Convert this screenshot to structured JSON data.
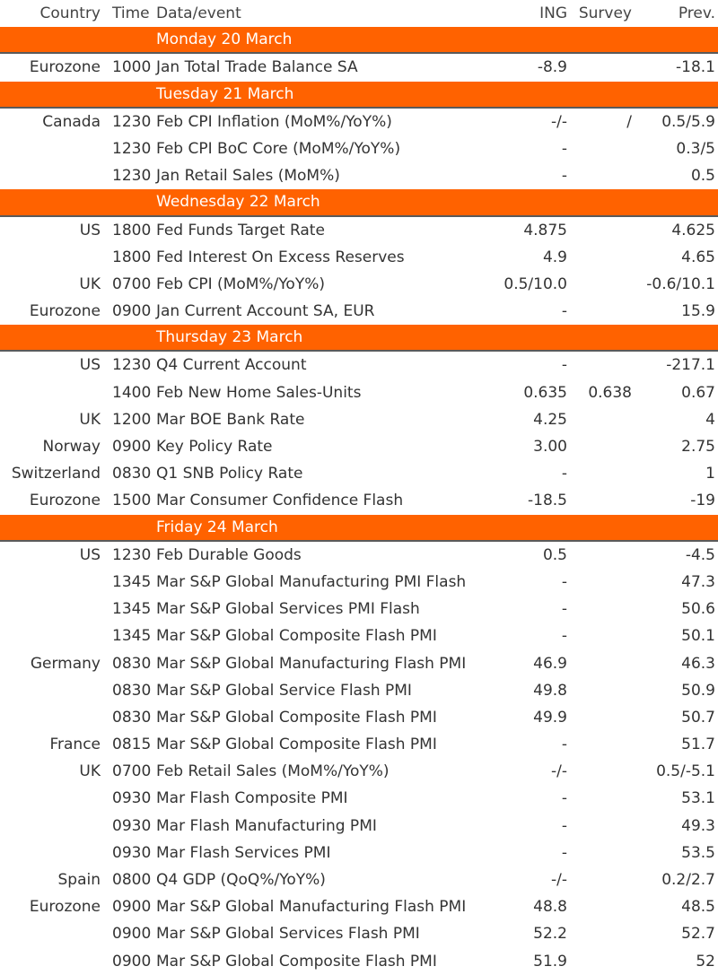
{
  "header": {
    "country": "Country",
    "time": "Time",
    "event": "Data/event",
    "ing": "ING",
    "survey": "Survey",
    "prev": "Prev."
  },
  "colors": {
    "day_bar": "#ff6200",
    "text": "#333333"
  },
  "days": [
    {
      "label": "Monday 20 March",
      "rows": [
        {
          "country": "Eurozone",
          "time": "1000",
          "event": "Jan Total Trade Balance SA",
          "ing": "-8.9",
          "survey": "",
          "prev": "-18.1"
        }
      ]
    },
    {
      "label": "Tuesday 21 March",
      "rows": [
        {
          "country": "Canada",
          "time": "1230",
          "event": "Feb CPI Inflation (MoM%/YoY%)",
          "ing": "-/-",
          "survey": "/",
          "prev": "0.5/5.9"
        },
        {
          "country": "",
          "time": "1230",
          "event": "Feb CPI BoC Core (MoM%/YoY%)",
          "ing": "-",
          "survey": "",
          "prev": "0.3/5"
        },
        {
          "country": "",
          "time": "1230",
          "event": "Jan Retail Sales (MoM%)",
          "ing": "-",
          "survey": "",
          "prev": "0.5"
        }
      ]
    },
    {
      "label": "Wednesday 22 March",
      "rows": [
        {
          "country": "US",
          "time": "1800",
          "event": "Fed Funds Target Rate",
          "ing": "4.875",
          "survey": "",
          "prev": "4.625"
        },
        {
          "country": "",
          "time": "1800",
          "event": "Fed Interest On Excess Reserves",
          "ing": "4.9",
          "survey": "",
          "prev": "4.65"
        },
        {
          "country": "UK",
          "time": "0700",
          "event": "Feb CPI (MoM%/YoY%)",
          "ing": "0.5/10.0",
          "survey": "",
          "prev": "-0.6/10.1"
        },
        {
          "country": "Eurozone",
          "time": "0900",
          "event": "Jan Current Account SA, EUR",
          "ing": "-",
          "survey": "",
          "prev": "15.9"
        }
      ]
    },
    {
      "label": "Thursday 23 March",
      "rows": [
        {
          "country": "US",
          "time": "1230",
          "event": "Q4 Current Account",
          "ing": "-",
          "survey": "",
          "prev": "-217.1"
        },
        {
          "country": "",
          "time": "1400",
          "event": "Feb New Home Sales-Units",
          "ing": "0.635",
          "survey": "0.638",
          "prev": "0.67"
        },
        {
          "country": "UK",
          "time": "1200",
          "event": "Mar BOE Bank Rate",
          "ing": "4.25",
          "survey": "",
          "prev": "4"
        },
        {
          "country": "Norway",
          "time": "0900",
          "event": "Key Policy Rate",
          "ing": "3.00",
          "survey": "",
          "prev": "2.75"
        },
        {
          "country": "Switzerland",
          "time": "0830",
          "event": "Q1 SNB Policy Rate",
          "ing": "-",
          "survey": "",
          "prev": "1"
        },
        {
          "country": "Eurozone",
          "time": "1500",
          "event": "Mar Consumer Confidence Flash",
          "ing": "-18.5",
          "survey": "",
          "prev": "-19"
        }
      ]
    },
    {
      "label": "Friday 24 March",
      "rows": [
        {
          "country": "US",
          "time": "1230",
          "event": "Feb Durable Goods",
          "ing": "0.5",
          "survey": "",
          "prev": "-4.5"
        },
        {
          "country": "",
          "time": "1345",
          "event": "Mar S&P Global Manufacturing PMI Flash",
          "ing": "-",
          "survey": "",
          "prev": "47.3"
        },
        {
          "country": "",
          "time": "1345",
          "event": "Mar S&P Global Services PMI Flash",
          "ing": "-",
          "survey": "",
          "prev": "50.6"
        },
        {
          "country": "",
          "time": "1345",
          "event": "Mar S&P Global Composite Flash PMI",
          "ing": "-",
          "survey": "",
          "prev": "50.1"
        },
        {
          "country": "Germany",
          "time": "0830",
          "event": "Mar S&P Global Manufacturing Flash PMI",
          "ing": "46.9",
          "survey": "",
          "prev": "46.3"
        },
        {
          "country": "",
          "time": "0830",
          "event": "Mar S&P Global Service Flash PMI",
          "ing": "49.8",
          "survey": "",
          "prev": "50.9"
        },
        {
          "country": "",
          "time": "0830",
          "event": "Mar S&P Global Composite Flash PMI",
          "ing": "49.9",
          "survey": "",
          "prev": "50.7"
        },
        {
          "country": "France",
          "time": "0815",
          "event": "Mar S&P Global Composite Flash PMI",
          "ing": "-",
          "survey": "",
          "prev": "51.7"
        },
        {
          "country": "UK",
          "time": "0700",
          "event": "Feb Retail Sales (MoM%/YoY%)",
          "ing": "-/-",
          "survey": "",
          "prev": "0.5/-5.1"
        },
        {
          "country": "",
          "time": "0930",
          "event": "Mar Flash Composite PMI",
          "ing": "-",
          "survey": "",
          "prev": "53.1"
        },
        {
          "country": "",
          "time": "0930",
          "event": "Mar Flash Manufacturing PMI",
          "ing": "-",
          "survey": "",
          "prev": "49.3"
        },
        {
          "country": "",
          "time": "0930",
          "event": "Mar Flash Services PMI",
          "ing": "-",
          "survey": "",
          "prev": "53.5"
        },
        {
          "country": "Spain",
          "time": "0800",
          "event": "Q4 GDP (QoQ%/YoY%)",
          "ing": "-/-",
          "survey": "",
          "prev": "0.2/2.7"
        },
        {
          "country": "Eurozone",
          "time": "0900",
          "event": "Mar S&P Global Manufacturing Flash PMI",
          "ing": "48.8",
          "survey": "",
          "prev": "48.5"
        },
        {
          "country": "",
          "time": "0900",
          "event": "Mar S&P Global Services Flash PMI",
          "ing": "52.2",
          "survey": "",
          "prev": "52.7"
        },
        {
          "country": "",
          "time": "0900",
          "event": "Mar S&P Global Composite Flash PMI",
          "ing": "51.9",
          "survey": "",
          "prev": "52"
        }
      ]
    }
  ]
}
